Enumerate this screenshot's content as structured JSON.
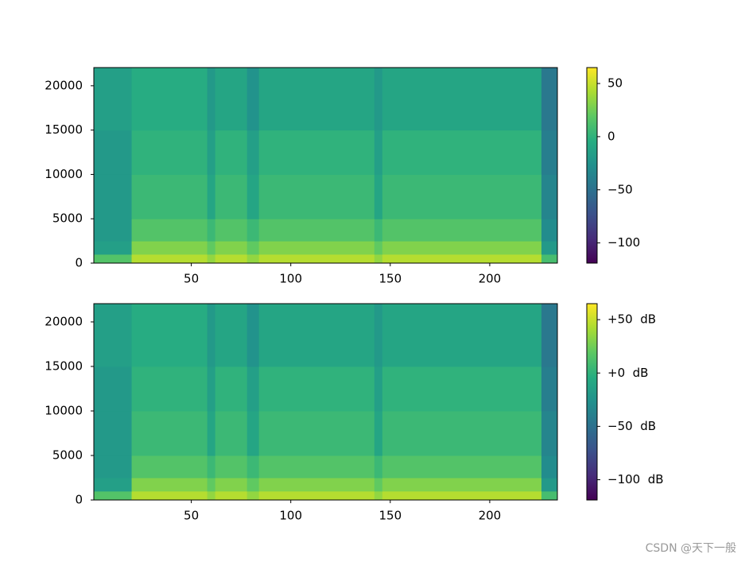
{
  "chart_data": [
    {
      "type": "heatmap",
      "colormap": "viridis",
      "xlim": [
        1,
        234
      ],
      "xticks": [
        50,
        100,
        150,
        200
      ],
      "ylim": [
        0,
        22050
      ],
      "yticks": [
        0,
        5000,
        10000,
        15000,
        20000
      ],
      "x_edges": [
        1,
        20,
        58,
        62,
        78,
        84,
        142,
        146,
        226,
        234
      ],
      "y_edges": [
        0,
        1000,
        2500,
        5000,
        10000,
        15000,
        22050
      ],
      "z": [
        [
          15,
          45,
          35,
          45,
          35,
          45,
          35,
          45,
          10
        ],
        [
          -15,
          30,
          20,
          30,
          20,
          30,
          20,
          30,
          -20
        ],
        [
          -20,
          15,
          5,
          15,
          5,
          15,
          5,
          15,
          -30
        ],
        [
          -20,
          5,
          -10,
          5,
          -10,
          5,
          -10,
          5,
          -35
        ],
        [
          -20,
          0,
          -15,
          0,
          -15,
          0,
          -15,
          0,
          -40
        ],
        [
          -15,
          -5,
          -20,
          -10,
          -25,
          -10,
          -20,
          -10,
          -45
        ]
      ],
      "clim": [
        -119,
        65
      ],
      "cticks": [
        {
          "value": -100,
          "label": "−100"
        },
        {
          "value": -50,
          "label": "−50"
        },
        0,
        50
      ]
    },
    {
      "type": "heatmap",
      "colormap": "viridis",
      "xlim": [
        1,
        234
      ],
      "xticks": [
        50,
        100,
        150,
        200
      ],
      "ylim": [
        0,
        22050
      ],
      "yticks": [
        0,
        5000,
        10000,
        15000,
        20000
      ],
      "x_edges": [
        1,
        20,
        58,
        62,
        78,
        84,
        142,
        146,
        226,
        234
      ],
      "y_edges": [
        0,
        1000,
        2500,
        5000,
        10000,
        15000,
        22050
      ],
      "z": [
        [
          15,
          45,
          35,
          45,
          35,
          45,
          35,
          45,
          10
        ],
        [
          -15,
          30,
          20,
          30,
          20,
          30,
          20,
          30,
          -20
        ],
        [
          -20,
          15,
          5,
          15,
          5,
          15,
          5,
          15,
          -30
        ],
        [
          -20,
          5,
          -10,
          5,
          -10,
          5,
          -10,
          5,
          -35
        ],
        [
          -20,
          0,
          -15,
          0,
          -15,
          0,
          -15,
          0,
          -40
        ],
        [
          -15,
          -5,
          -20,
          -10,
          -25,
          -10,
          -20,
          -10,
          -45
        ]
      ],
      "clim": [
        -119,
        65
      ],
      "cticks": [
        {
          "value": -100,
          "label": "−100  dB"
        },
        {
          "value": -50,
          "label": "−50  dB"
        },
        {
          "value": 0,
          "label": "+0  dB"
        },
        {
          "value": 50,
          "label": "+50  dB"
        }
      ]
    }
  ],
  "watermark": "CSDN @天下一般"
}
